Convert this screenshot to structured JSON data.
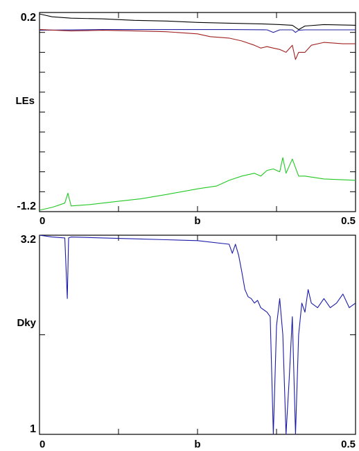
{
  "chart_data": [
    {
      "type": "line",
      "ylabel": "LEs",
      "xlabel": "b",
      "xlim": [
        0,
        0.5
      ],
      "ylim": [
        -1.2,
        0.2
      ],
      "x_tick_labels": [
        "0",
        "b",
        "0.5"
      ],
      "y_tick_labels": [
        "0.2",
        "-1.2"
      ],
      "grid": false,
      "series": [
        {
          "color": "#000000",
          "x": [
            0,
            0.02,
            0.05,
            0.1,
            0.15,
            0.2,
            0.25,
            0.3,
            0.35,
            0.38,
            0.4,
            0.41,
            0.42,
            0.45,
            0.5
          ],
          "values": [
            0.19,
            0.17,
            0.16,
            0.155,
            0.145,
            0.14,
            0.13,
            0.125,
            0.12,
            0.115,
            0.11,
            0.08,
            0.105,
            0.115,
            0.11
          ]
        },
        {
          "color": "#1f1fa0",
          "x": [
            0,
            0.1,
            0.2,
            0.3,
            0.36,
            0.37,
            0.38,
            0.4,
            0.405,
            0.41,
            0.42,
            0.45,
            0.5
          ],
          "values": [
            0.075,
            0.08,
            0.08,
            0.08,
            0.078,
            0.06,
            0.078,
            0.078,
            0.06,
            0.075,
            0.078,
            0.078,
            0.078
          ]
        },
        {
          "color": "#a02020",
          "x": [
            0,
            0.05,
            0.1,
            0.15,
            0.2,
            0.25,
            0.27,
            0.3,
            0.32,
            0.34,
            0.35,
            0.36,
            0.37,
            0.38,
            0.39,
            0.4,
            0.405,
            0.41,
            0.42,
            0.43,
            0.45,
            0.48,
            0.5
          ],
          "values": [
            0.08,
            0.07,
            0.075,
            0.07,
            0.065,
            0.05,
            0.03,
            0.02,
            0.0,
            -0.03,
            -0.05,
            -0.04,
            -0.05,
            -0.06,
            -0.08,
            -0.03,
            -0.13,
            -0.08,
            -0.08,
            -0.03,
            -0.01,
            -0.02,
            -0.02
          ]
        },
        {
          "color": "#22c822",
          "x": [
            0,
            0.02,
            0.04,
            0.045,
            0.05,
            0.08,
            0.12,
            0.16,
            0.2,
            0.25,
            0.28,
            0.3,
            0.32,
            0.34,
            0.35,
            0.36,
            0.37,
            0.38,
            0.385,
            0.39,
            0.4,
            0.41,
            0.42,
            0.45,
            0.5
          ],
          "values": [
            -1.19,
            -1.17,
            -1.14,
            -1.07,
            -1.16,
            -1.15,
            -1.13,
            -1.11,
            -1.08,
            -1.04,
            -1.02,
            -0.98,
            -0.95,
            -0.93,
            -0.95,
            -0.91,
            -0.9,
            -0.92,
            -0.82,
            -0.93,
            -0.83,
            -0.95,
            -0.95,
            -0.97,
            -0.98
          ]
        }
      ]
    },
    {
      "type": "line",
      "ylabel": "Dky",
      "xlabel": "b",
      "xlim": [
        0,
        0.5
      ],
      "ylim": [
        1,
        3.2
      ],
      "x_tick_labels": [
        "0",
        "b",
        "0.5"
      ],
      "y_tick_labels": [
        "3.2",
        "1"
      ],
      "grid": false,
      "series": [
        {
          "color": "#1a1aa8",
          "x": [
            0,
            0.02,
            0.04,
            0.044,
            0.046,
            0.05,
            0.1,
            0.15,
            0.2,
            0.25,
            0.3,
            0.305,
            0.31,
            0.315,
            0.32,
            0.325,
            0.33,
            0.335,
            0.34,
            0.345,
            0.35,
            0.36,
            0.365,
            0.37,
            0.375,
            0.38,
            0.385,
            0.39,
            0.395,
            0.4,
            0.405,
            0.41,
            0.415,
            0.42,
            0.425,
            0.43,
            0.44,
            0.45,
            0.46,
            0.47,
            0.48,
            0.49,
            0.5
          ],
          "values": [
            3.2,
            3.18,
            3.17,
            2.5,
            3.17,
            3.18,
            3.17,
            3.16,
            3.15,
            3.14,
            3.1,
            3.0,
            3.1,
            2.98,
            2.8,
            2.6,
            2.52,
            2.5,
            2.45,
            2.48,
            2.4,
            2.35,
            2.3,
            1.0,
            2.2,
            2.5,
            2.1,
            1.0,
            1.6,
            2.3,
            1.0,
            2.1,
            2.45,
            2.35,
            2.6,
            2.45,
            2.4,
            2.5,
            2.4,
            2.45,
            2.55,
            2.4,
            2.45
          ]
        }
      ]
    }
  ]
}
